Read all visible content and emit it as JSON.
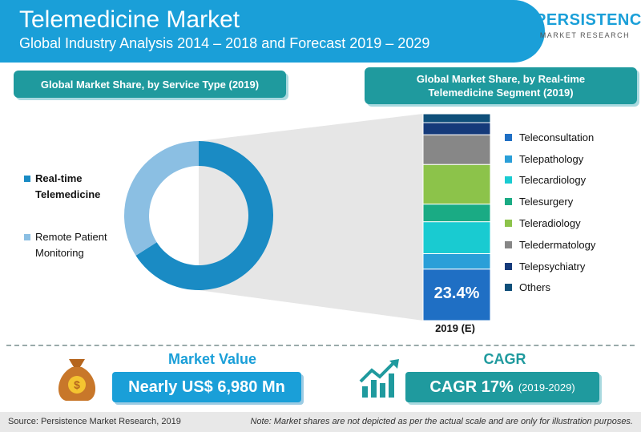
{
  "header": {
    "title": "Telemedicine Market",
    "subtitle": "Global Industry Analysis 2014 – 2018 and Forecast 2019 – 2029"
  },
  "logo": {
    "top": "PERSISTENCE",
    "bottom": "MARKET RESEARCH"
  },
  "left_panel_title": "Global Market Share, by Service Type (2019)",
  "right_panel_title_line1": "Global Market Share, by Real-time",
  "right_panel_title_line2": "Telemedicine Segment (2019)",
  "chart_data": [
    {
      "type": "pie",
      "title": "Global Market Share, by Service Type (2019)",
      "series": [
        {
          "name": "Real-time Telemedicine",
          "value": 66,
          "color": "#1a8bc4"
        },
        {
          "name": "Remote Patient Monitoring",
          "value": 34,
          "color": "#8bbfe3"
        }
      ],
      "legend_line1": [
        "Real-time",
        "Remote Patient"
      ],
      "legend_line2": [
        "Telemedicine",
        "Monitoring"
      ]
    },
    {
      "type": "bar",
      "stacked": true,
      "title": "Global Market Share, by Real-time Telemedicine Segment (2019)",
      "categories": [
        "2019 (E)"
      ],
      "series": [
        {
          "name": "Teleconsultation",
          "value": 23.4,
          "color": "#1f6fc4"
        },
        {
          "name": "Telepathology",
          "value": 7,
          "color": "#2a9fd8"
        },
        {
          "name": "Telecardiology",
          "value": 14.5,
          "color": "#19cbd1"
        },
        {
          "name": "Telesurgery",
          "value": 8,
          "color": "#1aab84"
        },
        {
          "name": "Teleradiology",
          "value": 18,
          "color": "#8cc34a"
        },
        {
          "name": "Teledermatology",
          "value": 13.5,
          "color": "#878787"
        },
        {
          "name": "Telepsychiatry",
          "value": 5.5,
          "color": "#153a7a"
        },
        {
          "name": "Others",
          "value": 4,
          "color": "#0f4f7a"
        }
      ],
      "data_label": "23.4%"
    }
  ],
  "market_value": {
    "title": "Market Value",
    "value": "Nearly US$ 6,980 Mn"
  },
  "cagr": {
    "title": "CAGR",
    "value": "CAGR 17%",
    "period": "(2019-2029)"
  },
  "footer": {
    "source": "Source: Persistence Market Research, 2019",
    "note": "Note: Market shares are not depicted as per the actual scale and are only for illustration purposes."
  }
}
